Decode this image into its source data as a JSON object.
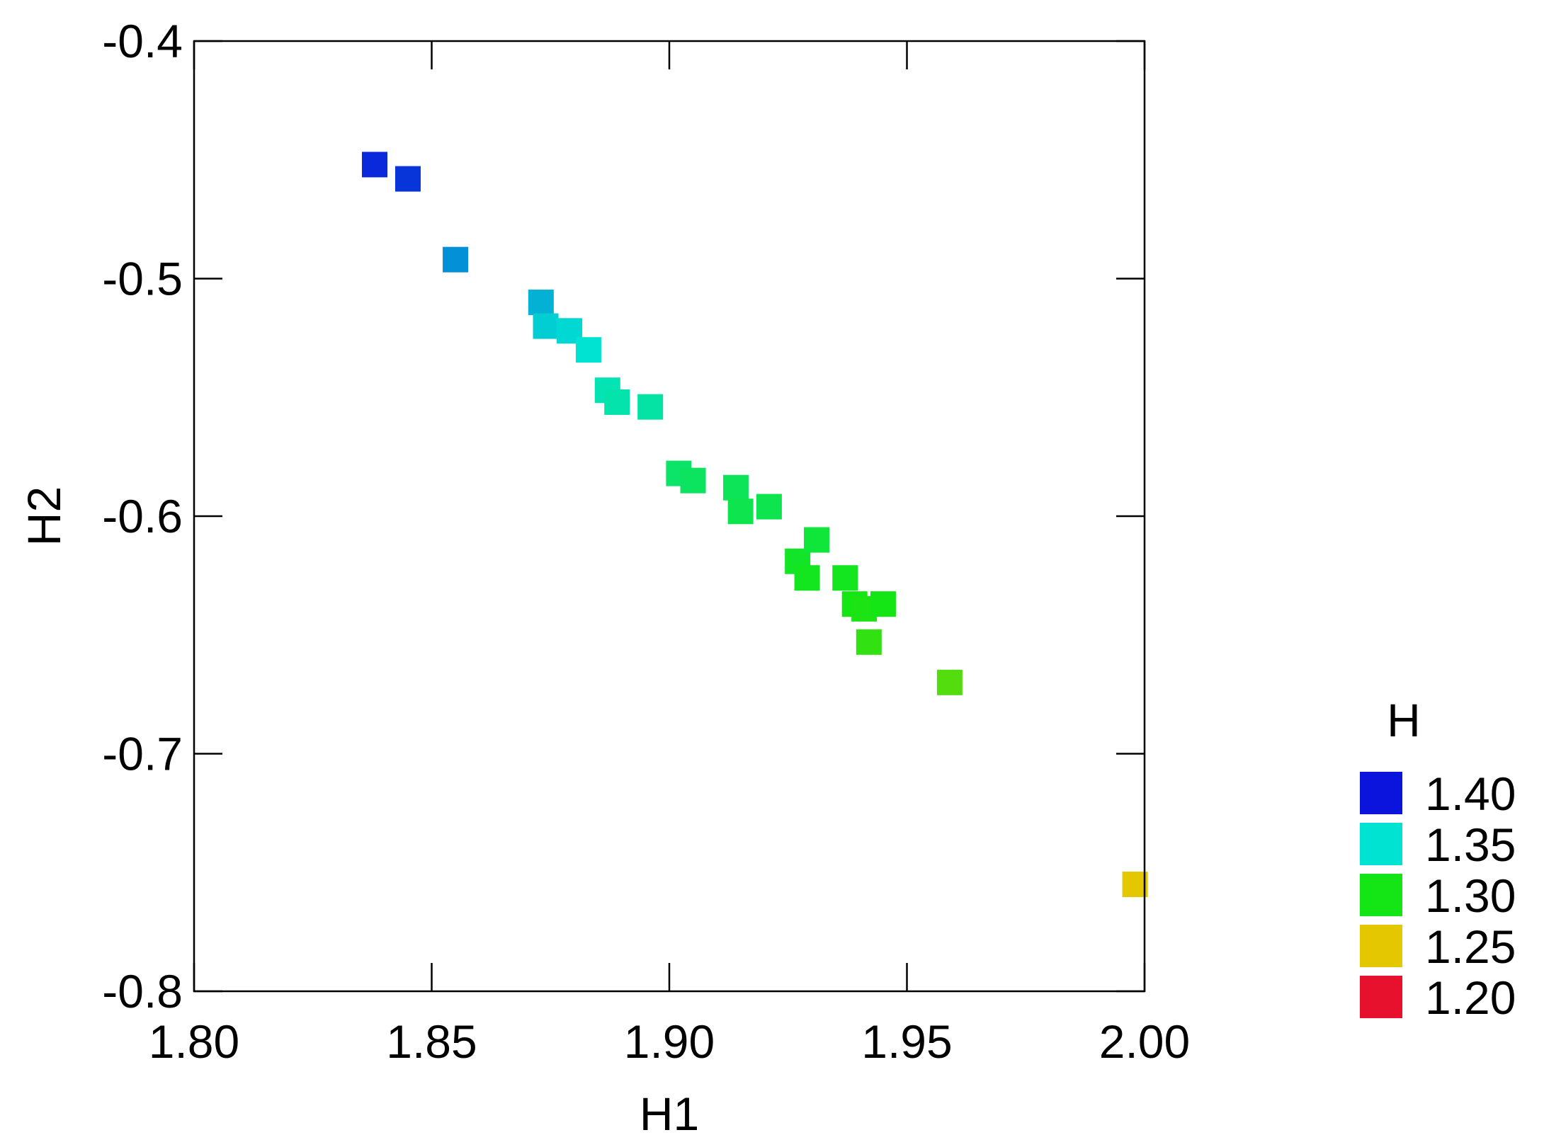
{
  "chart_data": {
    "type": "scatter",
    "xlabel": "H1",
    "ylabel": "H2",
    "xlim": [
      1.8,
      2.0
    ],
    "ylim": [
      -0.8,
      -0.4
    ],
    "x_ticks": [
      "1.80",
      "1.85",
      "1.90",
      "1.95",
      "2.00"
    ],
    "y_ticks": [
      "-0.4",
      "-0.5",
      "-0.6",
      "-0.7",
      "-0.8"
    ],
    "x_tick_values": [
      1.8,
      1.85,
      1.9,
      1.95,
      2.0
    ],
    "y_tick_values": [
      -0.4,
      -0.5,
      -0.6,
      -0.7,
      -0.8
    ],
    "grid": false,
    "marker": "square",
    "legend": {
      "title": "H",
      "placement": "right",
      "entries": [
        {
          "label": "1.40",
          "value": 1.4,
          "color": "#0a14dc"
        },
        {
          "label": "1.35",
          "value": 1.35,
          "color": "#00e3d2"
        },
        {
          "label": "1.30",
          "value": 1.3,
          "color": "#14e514"
        },
        {
          "label": "1.25",
          "value": 1.25,
          "color": "#e5c700"
        },
        {
          "label": "1.20",
          "value": 1.2,
          "color": "#e8112d"
        }
      ]
    },
    "points": [
      {
        "x": 1.838,
        "y": -0.452,
        "h": 1.395
      },
      {
        "x": 1.845,
        "y": -0.458,
        "h": 1.392
      },
      {
        "x": 1.855,
        "y": -0.492,
        "h": 1.37
      },
      {
        "x": 1.873,
        "y": -0.51,
        "h": 1.362
      },
      {
        "x": 1.874,
        "y": -0.52,
        "h": 1.355
      },
      {
        "x": 1.879,
        "y": -0.522,
        "h": 1.353
      },
      {
        "x": 1.883,
        "y": -0.53,
        "h": 1.35
      },
      {
        "x": 1.887,
        "y": -0.547,
        "h": 1.342
      },
      {
        "x": 1.889,
        "y": -0.552,
        "h": 1.34
      },
      {
        "x": 1.896,
        "y": -0.554,
        "h": 1.338
      },
      {
        "x": 1.902,
        "y": -0.582,
        "h": 1.322
      },
      {
        "x": 1.905,
        "y": -0.585,
        "h": 1.32
      },
      {
        "x": 1.914,
        "y": -0.588,
        "h": 1.318
      },
      {
        "x": 1.915,
        "y": -0.598,
        "h": 1.315
      },
      {
        "x": 1.921,
        "y": -0.596,
        "h": 1.315
      },
      {
        "x": 1.927,
        "y": -0.619,
        "h": 1.305
      },
      {
        "x": 1.929,
        "y": -0.626,
        "h": 1.303
      },
      {
        "x": 1.931,
        "y": -0.61,
        "h": 1.31
      },
      {
        "x": 1.937,
        "y": -0.626,
        "h": 1.303
      },
      {
        "x": 1.939,
        "y": -0.637,
        "h": 1.3
      },
      {
        "x": 1.941,
        "y": -0.639,
        "h": 1.298
      },
      {
        "x": 1.945,
        "y": -0.637,
        "h": 1.3
      },
      {
        "x": 1.942,
        "y": -0.653,
        "h": 1.293
      },
      {
        "x": 1.959,
        "y": -0.67,
        "h": 1.285
      },
      {
        "x": 1.998,
        "y": -0.755,
        "h": 1.25
      }
    ]
  }
}
